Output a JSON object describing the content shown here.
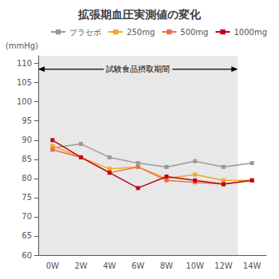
{
  "chart_data": {
    "type": "line",
    "title": "拡張期血圧実測値の変化",
    "ylabel": "(mmHg)",
    "categories": [
      "0W",
      "2W",
      "4W",
      "6W",
      "8W",
      "10W",
      "12W",
      "14W"
    ],
    "series": [
      {
        "name": "プラセボ",
        "color": "#999999",
        "marker": "square",
        "values": [
          88.0,
          89.0,
          85.5,
          84.0,
          83.0,
          84.5,
          83.0,
          84.0
        ]
      },
      {
        "name": "250mg",
        "color": "#F5A623",
        "marker": "square",
        "values": [
          88.5,
          null,
          82.5,
          83.0,
          80.0,
          81.0,
          79.5,
          79.5
        ]
      },
      {
        "name": "500mg",
        "color": "#E8714A",
        "marker": "square",
        "values": [
          87.5,
          85.5,
          81.5,
          83.0,
          79.5,
          79.0,
          78.5,
          79.5
        ]
      },
      {
        "name": "1000mg",
        "color": "#C0001A",
        "marker": "square",
        "values": [
          90.0,
          85.5,
          81.5,
          77.5,
          80.5,
          79.5,
          78.5,
          79.5
        ]
      }
    ],
    "ylim": [
      60,
      112
    ],
    "yticks": [
      60,
      65,
      70,
      75,
      80,
      85,
      90,
      95,
      100,
      105,
      110
    ],
    "annotations": [
      {
        "text": "試験食品摂取期間",
        "x": [
          "0W",
          "12W"
        ],
        "y": 108.5
      }
    ],
    "legend": "upper right",
    "grid": false
  }
}
